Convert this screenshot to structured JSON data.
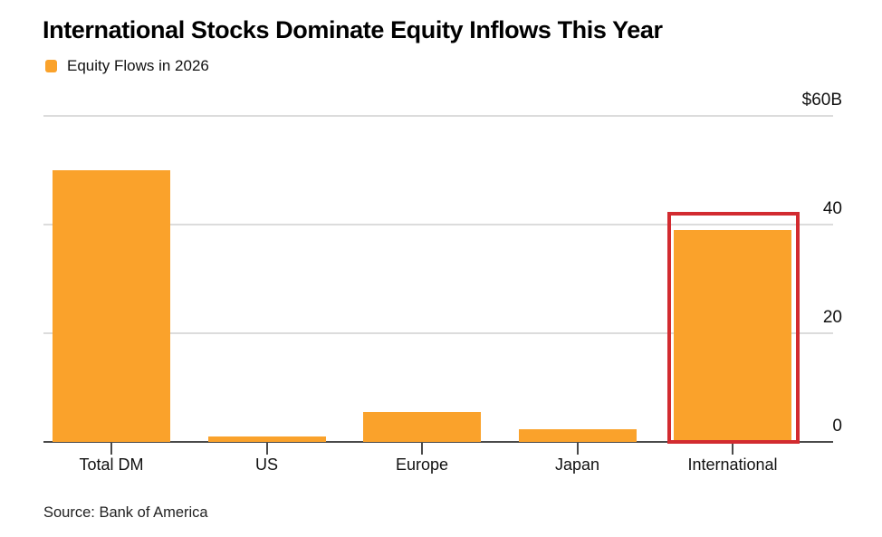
{
  "header": {
    "title": "International Stocks Dominate Equity Inflows This Year",
    "legend": {
      "label": "Equity Flows in 2026",
      "swatch_icon": "orange-square-icon",
      "swatch_color": "#faa22b"
    }
  },
  "chart_data": {
    "type": "bar",
    "title": "International Stocks Dominate Equity Inflows This Year",
    "legend_entries": [
      "Equity Flows in 2026"
    ],
    "legend_position": "top-left",
    "categories": [
      "Total DM",
      "US",
      "Europe",
      "Japan",
      "International"
    ],
    "values": [
      50,
      1,
      5.5,
      2.3,
      39
    ],
    "ylim": [
      0,
      60
    ],
    "y_ticks": [
      {
        "value": 60,
        "label": "$60B"
      },
      {
        "value": 40,
        "label": "40"
      },
      {
        "value": 20,
        "label": "20"
      },
      {
        "value": 0,
        "label": "0"
      }
    ],
    "y_axis_side": "right",
    "grid": "horizontal",
    "bar_color": "#faa22b",
    "gridline_color": "#dcdcdc",
    "baseline_color": "#4a4a4a",
    "highlight": {
      "category": "International",
      "color": "#d22b30",
      "shape": "red-box"
    }
  },
  "footer": {
    "source": "Source: Bank of America"
  }
}
